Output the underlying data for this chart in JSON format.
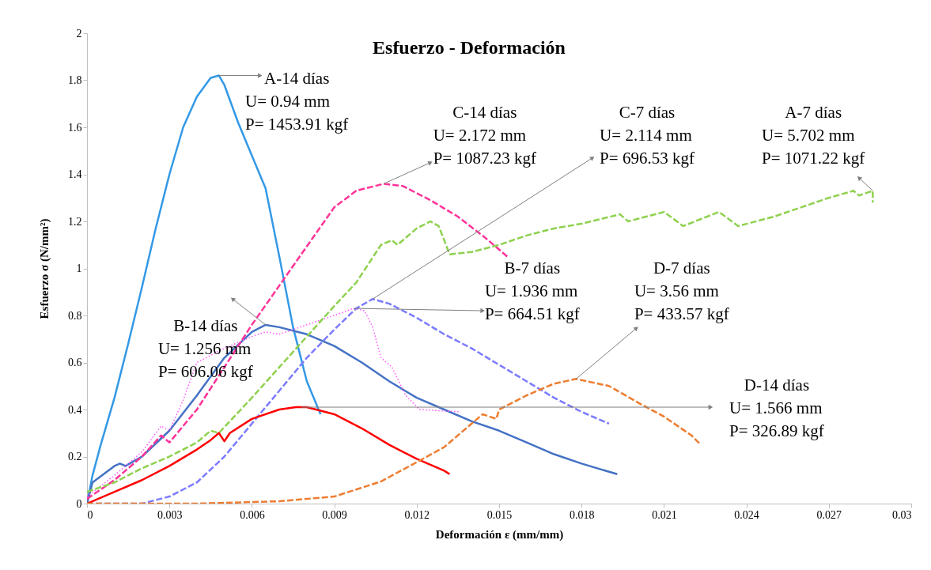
{
  "chart_data": {
    "type": "line",
    "title": "Esfuerzo - Deformación",
    "xlabel": "Deformación  ε  (mm/mm)",
    "ylabel": "Esfuerzo σ  (N/mm²)",
    "xlim": [
      0,
      0.03
    ],
    "xticks": [
      0,
      0.003,
      0.006,
      0.009,
      0.012,
      0.015,
      0.018,
      0.021,
      0.024,
      0.027,
      0.03
    ],
    "ylim": [
      0,
      2
    ],
    "yticks": [
      0,
      0.2,
      0.4,
      0.6,
      0.8,
      1,
      1.2,
      1.4,
      1.6,
      1.8,
      2
    ],
    "grid": false,
    "marker": "none",
    "series": [
      {
        "color": "#3399e6",
        "line_style": "solid",
        "x": [
          0,
          0.0002,
          0.0005,
          0.001,
          0.0015,
          0.002,
          0.0025,
          0.003,
          0.0035,
          0.004,
          0.0045,
          0.0048,
          0.005,
          0.0055,
          0.006,
          0.0065,
          0.007,
          0.0075,
          0.008,
          0.0085
        ],
        "values": [
          0,
          0.12,
          0.25,
          0.45,
          0.68,
          0.92,
          1.17,
          1.4,
          1.6,
          1.73,
          1.81,
          1.82,
          1.78,
          1.62,
          1.48,
          1.34,
          1.05,
          0.75,
          0.52,
          0.38
        ]
      },
      {
        "color": "#4472c4",
        "line_style": "solid",
        "x": [
          0,
          0.0002,
          0.001,
          0.0012,
          0.0014,
          0.002,
          0.003,
          0.004,
          0.005,
          0.006,
          0.0065,
          0.007,
          0.008,
          0.009,
          0.01,
          0.011,
          0.012,
          0.013,
          0.014,
          0.015,
          0.016,
          0.017,
          0.018,
          0.0193
        ],
        "values": [
          0,
          0.09,
          0.16,
          0.17,
          0.16,
          0.2,
          0.31,
          0.46,
          0.62,
          0.73,
          0.76,
          0.75,
          0.72,
          0.67,
          0.6,
          0.52,
          0.45,
          0.4,
          0.35,
          0.31,
          0.26,
          0.21,
          0.17,
          0.125
        ]
      },
      {
        "color": "#ff3399",
        "line_style": "dashed",
        "x": [
          0,
          0.001,
          0.002,
          0.0027,
          0.003,
          0.004,
          0.0045,
          0.005,
          0.006,
          0.0075,
          0.009,
          0.0098,
          0.0108,
          0.0115,
          0.0125,
          0.0135,
          0.0145,
          0.0153
        ],
        "values": [
          0.02,
          0.1,
          0.2,
          0.29,
          0.26,
          0.4,
          0.49,
          0.58,
          0.76,
          1.01,
          1.26,
          1.33,
          1.36,
          1.35,
          1.29,
          1.22,
          1.13,
          1.05
        ]
      },
      {
        "color": "#7b7bff",
        "line_style": "dashed",
        "x": [
          0,
          0.002,
          0.003,
          0.004,
          0.005,
          0.006,
          0.007,
          0.008,
          0.009,
          0.0098,
          0.0104,
          0.011,
          0.012,
          0.013,
          0.014,
          0.015,
          0.016,
          0.017,
          0.018,
          0.019
        ],
        "values": [
          0,
          0,
          0.03,
          0.09,
          0.2,
          0.34,
          0.48,
          0.62,
          0.74,
          0.83,
          0.87,
          0.85,
          0.79,
          0.72,
          0.66,
          0.59,
          0.52,
          0.45,
          0.39,
          0.34
        ]
      },
      {
        "color": "#ff55ff",
        "line_style": "dotted",
        "x": [
          0,
          0.001,
          0.002,
          0.0027,
          0.003,
          0.0035,
          0.004,
          0.0045,
          0.005,
          0.006,
          0.0065,
          0.007,
          0.008,
          0.009,
          0.0097,
          0.0101,
          0.0104,
          0.0107,
          0.0111,
          0.0116,
          0.0121,
          0.0136
        ],
        "values": [
          0.03,
          0.12,
          0.22,
          0.33,
          0.31,
          0.44,
          0.6,
          0.63,
          0.66,
          0.71,
          0.73,
          0.72,
          0.76,
          0.8,
          0.83,
          0.82,
          0.75,
          0.62,
          0.58,
          0.46,
          0.4,
          0.39
        ]
      },
      {
        "color": "#8fd14f",
        "line_style": "dashed",
        "x": [
          0,
          0.001,
          0.002,
          0.003,
          0.004,
          0.0045,
          0.0048,
          0.006,
          0.007,
          0.008,
          0.009,
          0.0098,
          0.0107,
          0.0111,
          0.0113,
          0.012,
          0.0125,
          0.0128,
          0.0132,
          0.014,
          0.015,
          0.016,
          0.017,
          0.018,
          0.0194,
          0.0197,
          0.021,
          0.0217,
          0.023,
          0.0237,
          0.025,
          0.027,
          0.0279,
          0.0281,
          0.0286,
          0.0286
        ],
        "values": [
          0.05,
          0.09,
          0.15,
          0.2,
          0.26,
          0.31,
          0.3,
          0.45,
          0.58,
          0.71,
          0.84,
          0.94,
          1.1,
          1.12,
          1.1,
          1.17,
          1.2,
          1.18,
          1.06,
          1.07,
          1.1,
          1.14,
          1.17,
          1.19,
          1.23,
          1.2,
          1.24,
          1.18,
          1.24,
          1.18,
          1.22,
          1.3,
          1.33,
          1.31,
          1.33,
          1.28
        ]
      },
      {
        "color": "#ff0000",
        "line_style": "solid",
        "x": [
          0,
          0.001,
          0.002,
          0.003,
          0.004,
          0.0045,
          0.0048,
          0.005,
          0.0052,
          0.006,
          0.007,
          0.0076,
          0.008,
          0.009,
          0.01,
          0.011,
          0.012,
          0.013,
          0.0132
        ],
        "values": [
          0,
          0.05,
          0.1,
          0.16,
          0.23,
          0.27,
          0.3,
          0.265,
          0.3,
          0.36,
          0.4,
          0.41,
          0.41,
          0.38,
          0.32,
          0.25,
          0.19,
          0.14,
          0.125
        ]
      },
      {
        "color": "#ed7d31",
        "line_style": "dashed",
        "x": [
          0,
          0.004,
          0.007,
          0.009,
          0.0107,
          0.0123,
          0.013,
          0.0144,
          0.0149,
          0.015,
          0.016,
          0.017,
          0.0178,
          0.019,
          0.0202,
          0.021,
          0.022,
          0.0223
        ],
        "values": [
          0,
          0,
          0.01,
          0.03,
          0.094,
          0.195,
          0.24,
          0.38,
          0.36,
          0.4,
          0.46,
          0.51,
          0.53,
          0.5,
          0.42,
          0.37,
          0.29,
          0.255
        ]
      }
    ],
    "annotations": [
      {
        "text": "A-14 días\nU= 0.94 mm\nP= 1453.91 kgf",
        "x": 0.0048,
        "y": 1.82
      },
      {
        "text": "C-14 días\nU= 2.172 mm\nP= 1087.23 kgf",
        "x": 0.0108,
        "y": 1.36
      },
      {
        "text": "C-7 días\nU= 2.114 mm\nP= 696.53 kgf",
        "x": 0.0104,
        "y": 0.87
      },
      {
        "text": "A-7 días\nU= 5.702 mm\nP= 1071.22 kgf",
        "x": 0.0286,
        "y": 1.33
      },
      {
        "text": "B-14 días\nU= 1.256 mm\nP= 606.06 kgf",
        "x": 0.0065,
        "y": 0.76
      },
      {
        "text": "B-7 días\nU= 1.936 mm\nP= 664.51 kgf",
        "x": 0.0097,
        "y": 0.83
      },
      {
        "text": "D-7 días\nU= 3.56 mm\nP= 433.57 kgf",
        "x": 0.0178,
        "y": 0.53
      },
      {
        "text": "D-14 días\nU= 1.566 mm\nP= 326.89 kgf",
        "x": 0.0078,
        "y": 0.41
      }
    ]
  }
}
